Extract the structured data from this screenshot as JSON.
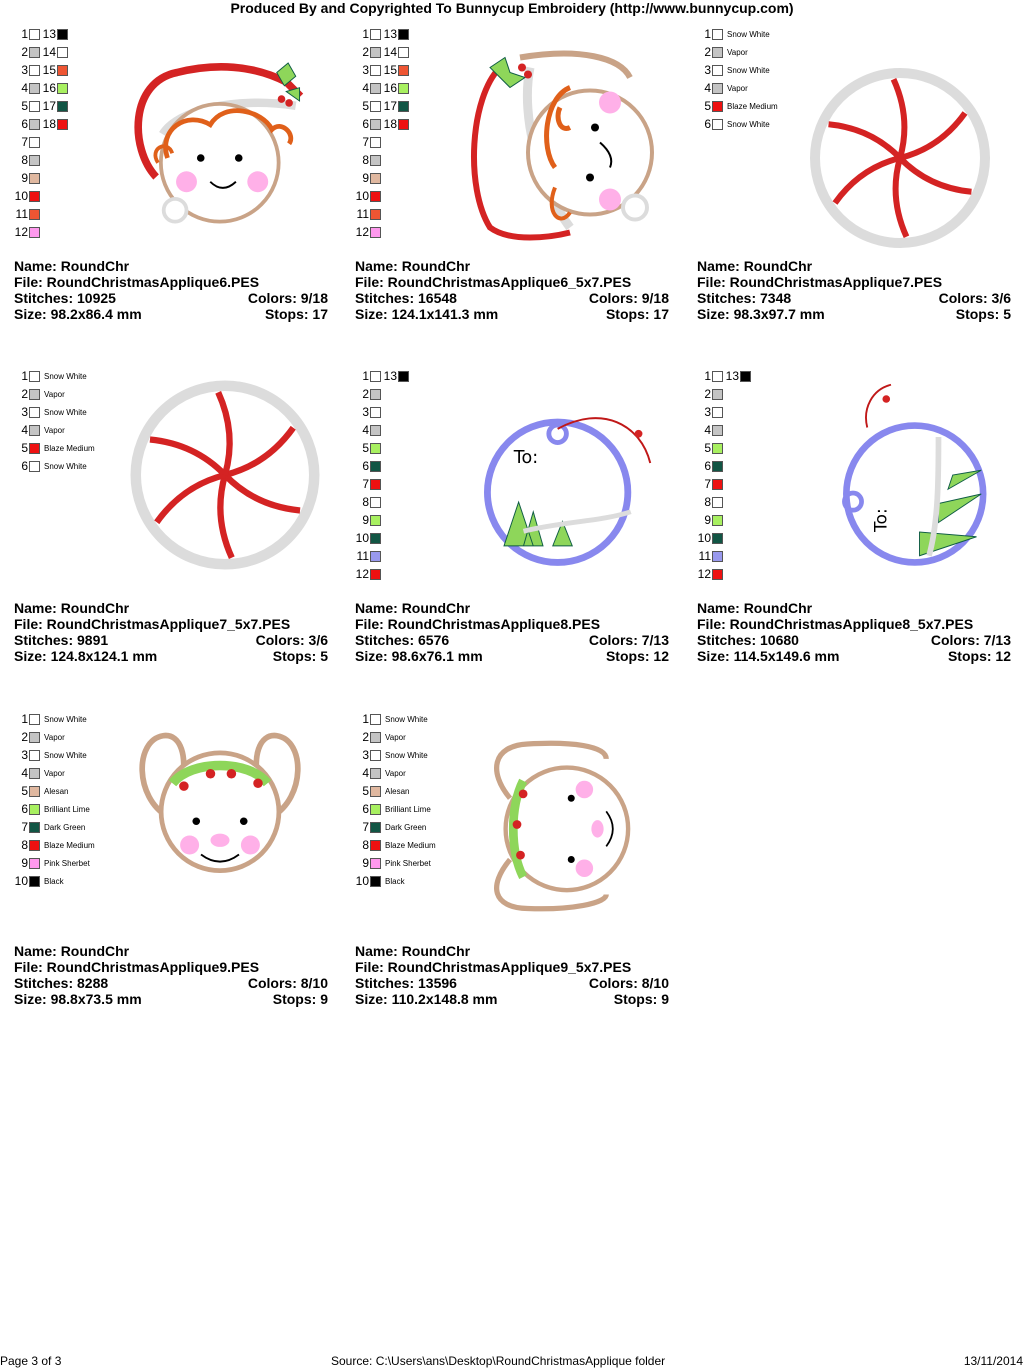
{
  "header": "Produced By and Copyrighted To Bunnycup Embroidery (http://www.bunnycup.com)",
  "colors": {
    "Snow White": "#ffffff",
    "Vapor": "#c4c4c4",
    "Blaze Medium": "#ee1111",
    "Alesan": "#e0b8a0",
    "Brilliant Lime": "#a8f060",
    "Dark Green": "#115544",
    "Pink Sherbet": "#ff99ee",
    "Black": "#000000",
    "Gray": "#c0c0c0",
    "Orange Red": "#ee5533",
    "Lime": "#99ee55",
    "Deep Green": "#115540",
    "Red": "#ee0000",
    "Tan": "#d8b098",
    "Pink": "#ff99ee",
    "Lavender": "#9999ee"
  },
  "labels": {
    "name": "Name:",
    "file": "File:",
    "stitches": "Stitches:",
    "colors": "Colors:",
    "size": "Size:",
    "stops": "Stops:"
  },
  "designs": [
    {
      "name": "RoundChr",
      "file": "RoundChristmasApplique6.PES",
      "stitches": "10925",
      "colors": "9/18",
      "size": "98.2x86.4 mm",
      "stops": "17",
      "art": "elf",
      "legend": [
        {
          "n": "1",
          "c": "#ffffff",
          "n2": "13",
          "c2": "#000000"
        },
        {
          "n": "2",
          "c": "#c4c4c4",
          "n2": "14",
          "c2": "#ffffff"
        },
        {
          "n": "3",
          "c": "#ffffff",
          "n2": "15",
          "c2": "#ee5533"
        },
        {
          "n": "4",
          "c": "#c4c4c4",
          "n2": "16",
          "c2": "#a8f060"
        },
        {
          "n": "5",
          "c": "#ffffff",
          "n2": "17",
          "c2": "#115544"
        },
        {
          "n": "6",
          "c": "#c4c4c4",
          "n2": "18",
          "c2": "#ee1111"
        },
        {
          "n": "7",
          "c": "#ffffff"
        },
        {
          "n": "8",
          "c": "#c4c4c4"
        },
        {
          "n": "9",
          "c": "#e0b8a0"
        },
        {
          "n": "10",
          "c": "#ee1111"
        },
        {
          "n": "11",
          "c": "#ee5533"
        },
        {
          "n": "12",
          "c": "#ff99ee"
        }
      ]
    },
    {
      "name": "RoundChr",
      "file": "RoundChristmasApplique6_5x7.PES",
      "stitches": "16548",
      "colors": "9/18",
      "size": "124.1x141.3 mm",
      "stops": "17",
      "art": "elf2",
      "legend": [
        {
          "n": "1",
          "c": "#ffffff",
          "n2": "13",
          "c2": "#000000"
        },
        {
          "n": "2",
          "c": "#c4c4c4",
          "n2": "14",
          "c2": "#ffffff"
        },
        {
          "n": "3",
          "c": "#ffffff",
          "n2": "15",
          "c2": "#ee5533"
        },
        {
          "n": "4",
          "c": "#c4c4c4",
          "n2": "16",
          "c2": "#a8f060"
        },
        {
          "n": "5",
          "c": "#ffffff",
          "n2": "17",
          "c2": "#115544"
        },
        {
          "n": "6",
          "c": "#c4c4c4",
          "n2": "18",
          "c2": "#ee1111"
        },
        {
          "n": "7",
          "c": "#ffffff"
        },
        {
          "n": "8",
          "c": "#c4c4c4"
        },
        {
          "n": "9",
          "c": "#e0b8a0"
        },
        {
          "n": "10",
          "c": "#ee1111"
        },
        {
          "n": "11",
          "c": "#ee5533"
        },
        {
          "n": "12",
          "c": "#ff99ee"
        }
      ]
    },
    {
      "name": "RoundChr",
      "file": "RoundChristmasApplique7.PES",
      "stitches": "7348",
      "colors": "3/6",
      "size": "98.3x97.7 mm",
      "stops": "5",
      "art": "peppermint",
      "legend": [
        {
          "n": "1",
          "c": "#ffffff",
          "label": "Snow White"
        },
        {
          "n": "2",
          "c": "#c4c4c4",
          "label": "Vapor"
        },
        {
          "n": "3",
          "c": "#ffffff",
          "label": "Snow White"
        },
        {
          "n": "4",
          "c": "#c4c4c4",
          "label": "Vapor"
        },
        {
          "n": "5",
          "c": "#ee1111",
          "label": "Blaze Medium"
        },
        {
          "n": "6",
          "c": "#ffffff",
          "label": "Snow White"
        }
      ]
    },
    {
      "name": "RoundChr",
      "file": "RoundChristmasApplique7_5x7.PES",
      "stitches": "9891",
      "colors": "3/6",
      "size": "124.8x124.1 mm",
      "stops": "5",
      "art": "peppermint",
      "legend": [
        {
          "n": "1",
          "c": "#ffffff",
          "label": "Snow White"
        },
        {
          "n": "2",
          "c": "#c4c4c4",
          "label": "Vapor"
        },
        {
          "n": "3",
          "c": "#ffffff",
          "label": "Snow White"
        },
        {
          "n": "4",
          "c": "#c4c4c4",
          "label": "Vapor"
        },
        {
          "n": "5",
          "c": "#ee1111",
          "label": "Blaze Medium"
        },
        {
          "n": "6",
          "c": "#ffffff",
          "label": "Snow White"
        }
      ]
    },
    {
      "name": "RoundChr",
      "file": "RoundChristmasApplique8.PES",
      "stitches": "6576",
      "colors": "7/13",
      "size": "98.6x76.1 mm",
      "stops": "12",
      "art": "tag",
      "legend": [
        {
          "n": "1",
          "c": "#ffffff",
          "n2": "13",
          "c2": "#000000"
        },
        {
          "n": "2",
          "c": "#c4c4c4"
        },
        {
          "n": "3",
          "c": "#ffffff"
        },
        {
          "n": "4",
          "c": "#c4c4c4"
        },
        {
          "n": "5",
          "c": "#a8f060"
        },
        {
          "n": "6",
          "c": "#115544"
        },
        {
          "n": "7",
          "c": "#ee1111"
        },
        {
          "n": "8",
          "c": "#ffffff"
        },
        {
          "n": "9",
          "c": "#a8f060"
        },
        {
          "n": "10",
          "c": "#115544"
        },
        {
          "n": "11",
          "c": "#9999ee"
        },
        {
          "n": "12",
          "c": "#ee1111"
        }
      ]
    },
    {
      "name": "RoundChr",
      "file": "RoundChristmasApplique8_5x7.PES",
      "stitches": "10680",
      "colors": "7/13",
      "size": "114.5x149.6 mm",
      "stops": "12",
      "art": "tag2",
      "legend": [
        {
          "n": "1",
          "c": "#ffffff",
          "n2": "13",
          "c2": "#000000"
        },
        {
          "n": "2",
          "c": "#c4c4c4"
        },
        {
          "n": "3",
          "c": "#ffffff"
        },
        {
          "n": "4",
          "c": "#c4c4c4"
        },
        {
          "n": "5",
          "c": "#a8f060"
        },
        {
          "n": "6",
          "c": "#115544"
        },
        {
          "n": "7",
          "c": "#ee1111"
        },
        {
          "n": "8",
          "c": "#ffffff"
        },
        {
          "n": "9",
          "c": "#a8f060"
        },
        {
          "n": "10",
          "c": "#115544"
        },
        {
          "n": "11",
          "c": "#9999ee"
        },
        {
          "n": "12",
          "c": "#ee1111"
        }
      ]
    },
    {
      "name": "RoundChr",
      "file": "RoundChristmasApplique9.PES",
      "stitches": "8288",
      "colors": "8/10",
      "size": "98.8x73.5 mm",
      "stops": "9",
      "art": "mouse",
      "legend": [
        {
          "n": "1",
          "c": "#ffffff",
          "label": "Snow White"
        },
        {
          "n": "2",
          "c": "#c4c4c4",
          "label": "Vapor"
        },
        {
          "n": "3",
          "c": "#ffffff",
          "label": "Snow White"
        },
        {
          "n": "4",
          "c": "#c4c4c4",
          "label": "Vapor"
        },
        {
          "n": "5",
          "c": "#e0b8a0",
          "label": "Alesan"
        },
        {
          "n": "6",
          "c": "#a8f060",
          "label": "Brilliant Lime"
        },
        {
          "n": "7",
          "c": "#115544",
          "label": "Dark Green"
        },
        {
          "n": "8",
          "c": "#ee1111",
          "label": "Blaze Medium"
        },
        {
          "n": "9",
          "c": "#ff99ee",
          "label": "Pink Sherbet"
        },
        {
          "n": "10",
          "c": "#000000",
          "label": "Black"
        }
      ]
    },
    {
      "name": "RoundChr",
      "file": "RoundChristmasApplique9_5x7.PES",
      "stitches": "13596",
      "colors": "8/10",
      "size": "110.2x148.8 mm",
      "stops": "9",
      "art": "mouse2",
      "legend": [
        {
          "n": "1",
          "c": "#ffffff",
          "label": "Snow White"
        },
        {
          "n": "2",
          "c": "#c4c4c4",
          "label": "Vapor"
        },
        {
          "n": "3",
          "c": "#ffffff",
          "label": "Snow White"
        },
        {
          "n": "4",
          "c": "#c4c4c4",
          "label": "Vapor"
        },
        {
          "n": "5",
          "c": "#e0b8a0",
          "label": "Alesan"
        },
        {
          "n": "6",
          "c": "#a8f060",
          "label": "Brilliant Lime"
        },
        {
          "n": "7",
          "c": "#115544",
          "label": "Dark Green"
        },
        {
          "n": "8",
          "c": "#ee1111",
          "label": "Blaze Medium"
        },
        {
          "n": "9",
          "c": "#ff99ee",
          "label": "Pink Sherbet"
        },
        {
          "n": "10",
          "c": "#000000",
          "label": "Black"
        }
      ]
    }
  ],
  "footer": {
    "page": "Page 3 of 3",
    "source": "Source: C:\\Users\\ans\\Desktop\\RoundChristmasApplique folder",
    "date": "13/11/2014"
  }
}
